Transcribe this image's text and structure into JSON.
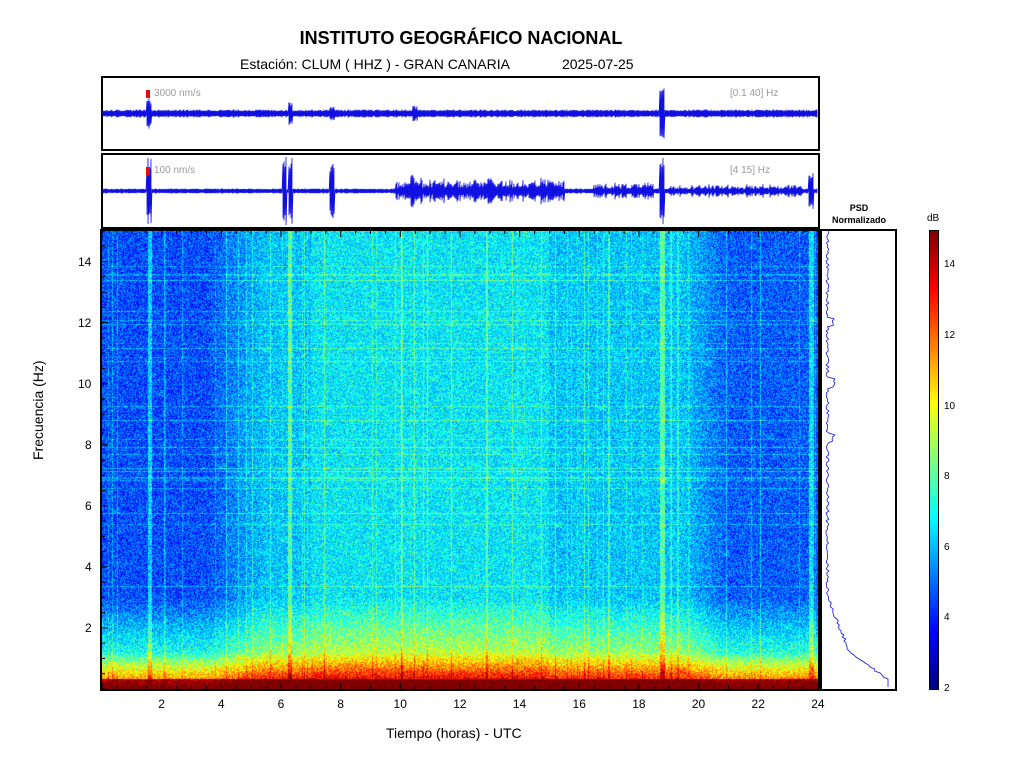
{
  "header": {
    "title": "INSTITUTO GEOGRÁFICO NACIONAL",
    "station_line": "Estación:  CLUM ( HHZ ) - GRAN CANARIA",
    "date": "2025-07-25"
  },
  "traces": [
    {
      "amplitude_label": "3000 nm/s",
      "filter_label": "[0.1 40] Hz"
    },
    {
      "amplitude_label": "100 nm/s",
      "filter_label": "[4 15] Hz"
    }
  ],
  "psd_title_line1": "PSD",
  "psd_title_line2": "Normalizado",
  "colorbar": {
    "unit": "dB",
    "ticks": [
      "2",
      "4",
      "6",
      "8",
      "10",
      "12",
      "14"
    ],
    "range": [
      2,
      15
    ]
  },
  "colors": {
    "trace": "#1010e0",
    "frame": "#000000",
    "scale_marker": "#e01010"
  },
  "chart_data": {
    "type": "heatmap",
    "title": "INSTITUTO GEOGRÁFICO NACIONAL",
    "xlabel": "Tiempo (horas) - UTC",
    "ylabel": "Frecuencia  (Hz)",
    "xlim": [
      0,
      24
    ],
    "ylim": [
      0,
      15
    ],
    "x_ticks": [
      "2",
      "4",
      "6",
      "8",
      "10",
      "12",
      "14",
      "16",
      "18",
      "20",
      "22",
      "24"
    ],
    "y_ticks": [
      "2",
      "4",
      "6",
      "8",
      "10",
      "12",
      "14"
    ],
    "colormap": "jet",
    "zlim": [
      2,
      15
    ],
    "transient_events_hours": [
      1.6,
      6.3,
      18.8,
      23.8
    ]
  }
}
